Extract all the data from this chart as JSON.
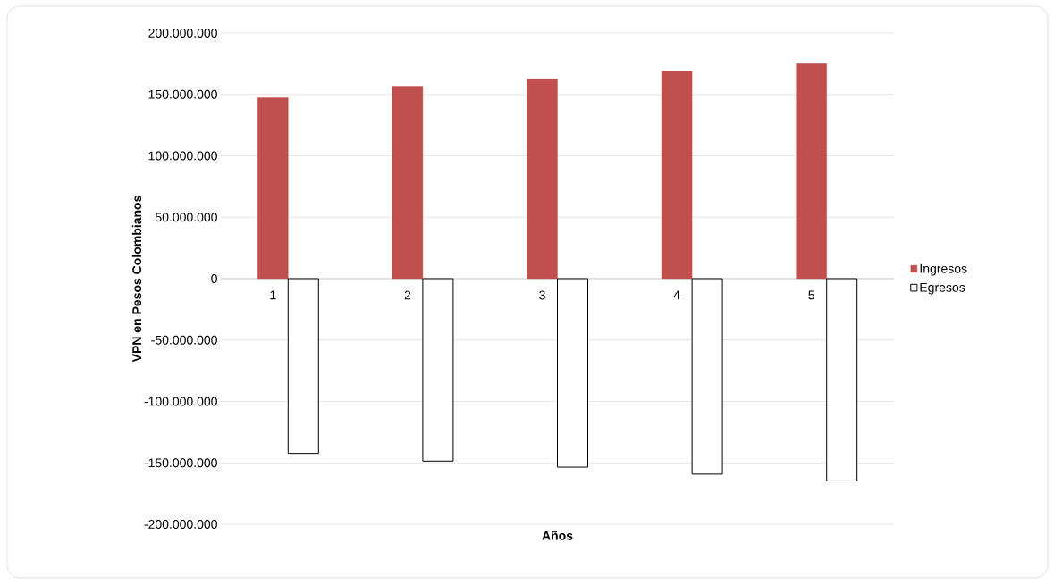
{
  "chart_data": {
    "type": "bar",
    "xlabel": "Años",
    "ylabel": "VPN  en Pesos Colombianos",
    "categories": [
      "1",
      "2",
      "3",
      "4",
      "5"
    ],
    "series": [
      {
        "name": "Ingresos",
        "color": "#c0504d",
        "values": [
          147200000,
          156700000,
          162700000,
          168700000,
          175000000
        ]
      },
      {
        "name": "Egresos",
        "color": "#ffffff",
        "values": [
          -142300000,
          -148600000,
          -153500000,
          -159200000,
          -164700000
        ]
      }
    ],
    "ylim": [
      -200000000,
      200000000
    ],
    "yticks": [
      {
        "value": -200000000,
        "label": "-200.000.000"
      },
      {
        "value": -150000000,
        "label": "-150.000.000"
      },
      {
        "value": -100000000,
        "label": "-100.000.000"
      },
      {
        "value": -50000000,
        "label": "-50.000.000"
      },
      {
        "value": 0,
        "label": "0"
      },
      {
        "value": 50000000,
        "label": "50.000.000"
      },
      {
        "value": 100000000,
        "label": "100.000.000"
      },
      {
        "value": 150000000,
        "label": "150.000.000"
      },
      {
        "value": 200000000,
        "label": "200.000.000"
      }
    ],
    "grid": "y",
    "legend": "right"
  }
}
